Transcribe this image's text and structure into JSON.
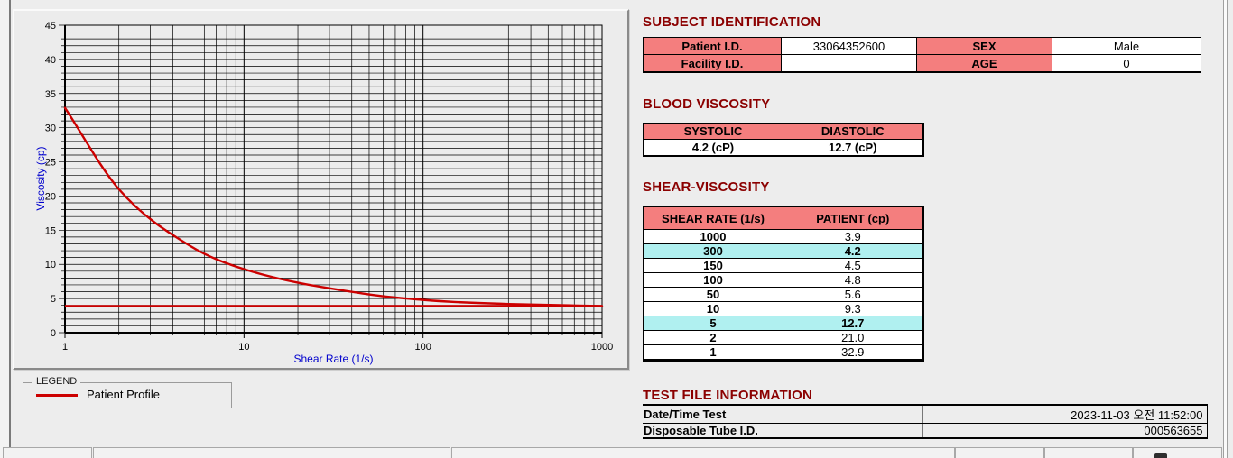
{
  "colors": {
    "accent_pink": "#f47e7e",
    "highlight_cyan": "#b0f0f0",
    "title_maroon": "#8b0000",
    "axis_blue": "#0000cd",
    "series_red": "#cc0000"
  },
  "chart_data": {
    "type": "line",
    "xscale": "log",
    "x": [
      1,
      2,
      5,
      10,
      50,
      100,
      150,
      300,
      1000
    ],
    "series": [
      {
        "name": "Patient Profile",
        "color": "#cc0000",
        "values": [
          32.9,
          21.0,
          12.7,
          9.3,
          5.6,
          4.8,
          4.5,
          4.2,
          3.9
        ]
      }
    ],
    "baseline": {
      "y": 3.9,
      "color": "#cc0000"
    },
    "title": "",
    "xlabel": "Shear Rate (1/s)",
    "ylabel": "Viscosity (cp)",
    "xlim": [
      1,
      1000
    ],
    "ylim": [
      0,
      45
    ],
    "xticks": [
      1,
      10,
      100,
      1000
    ],
    "yticks": [
      0,
      5,
      10,
      15,
      20,
      25,
      30,
      35,
      40,
      45
    ],
    "y_minor_step": 1,
    "grid": true,
    "legend_position": "bottom-left-box"
  },
  "legend": {
    "title": "LEGEND",
    "series": "Patient Profile"
  },
  "sections": {
    "subject": {
      "title": "SUBJECT IDENTIFICATION",
      "patient_id_label": "Patient I.D.",
      "patient_id": "33064352600",
      "sex_label": "SEX",
      "sex": "Male",
      "facility_id_label": "Facility I.D.",
      "facility_id": "",
      "age_label": "AGE",
      "age": "0"
    },
    "blood": {
      "title": "BLOOD VISCOSITY",
      "systolic_label": "SYSTOLIC",
      "diastolic_label": "DIASTOLIC",
      "systolic": "4.2 (cP)",
      "diastolic": "12.7 (cP)"
    },
    "shear": {
      "title": "SHEAR-VISCOSITY",
      "rate_header": "SHEAR RATE (1/s)",
      "patient_header": "PATIENT (cp)",
      "rows": [
        {
          "rate": "1000",
          "value": "3.9",
          "highlight": false
        },
        {
          "rate": "300",
          "value": "4.2",
          "highlight": true
        },
        {
          "rate": "150",
          "value": "4.5",
          "highlight": false
        },
        {
          "rate": "100",
          "value": "4.8",
          "highlight": false
        },
        {
          "rate": "50",
          "value": "5.6",
          "highlight": false
        },
        {
          "rate": "10",
          "value": "9.3",
          "highlight": false
        },
        {
          "rate": "5",
          "value": "12.7",
          "highlight": true
        },
        {
          "rate": "2",
          "value": "21.0",
          "highlight": false
        },
        {
          "rate": "1",
          "value": "32.9",
          "highlight": false
        }
      ]
    },
    "testfile": {
      "title": "TEST FILE INFORMATION",
      "datetime_label": "Date/Time Test",
      "datetime": "2023-11-03 오전 11:52:00",
      "tube_label": "Disposable Tube I.D.",
      "tube_id": "000563655"
    }
  }
}
